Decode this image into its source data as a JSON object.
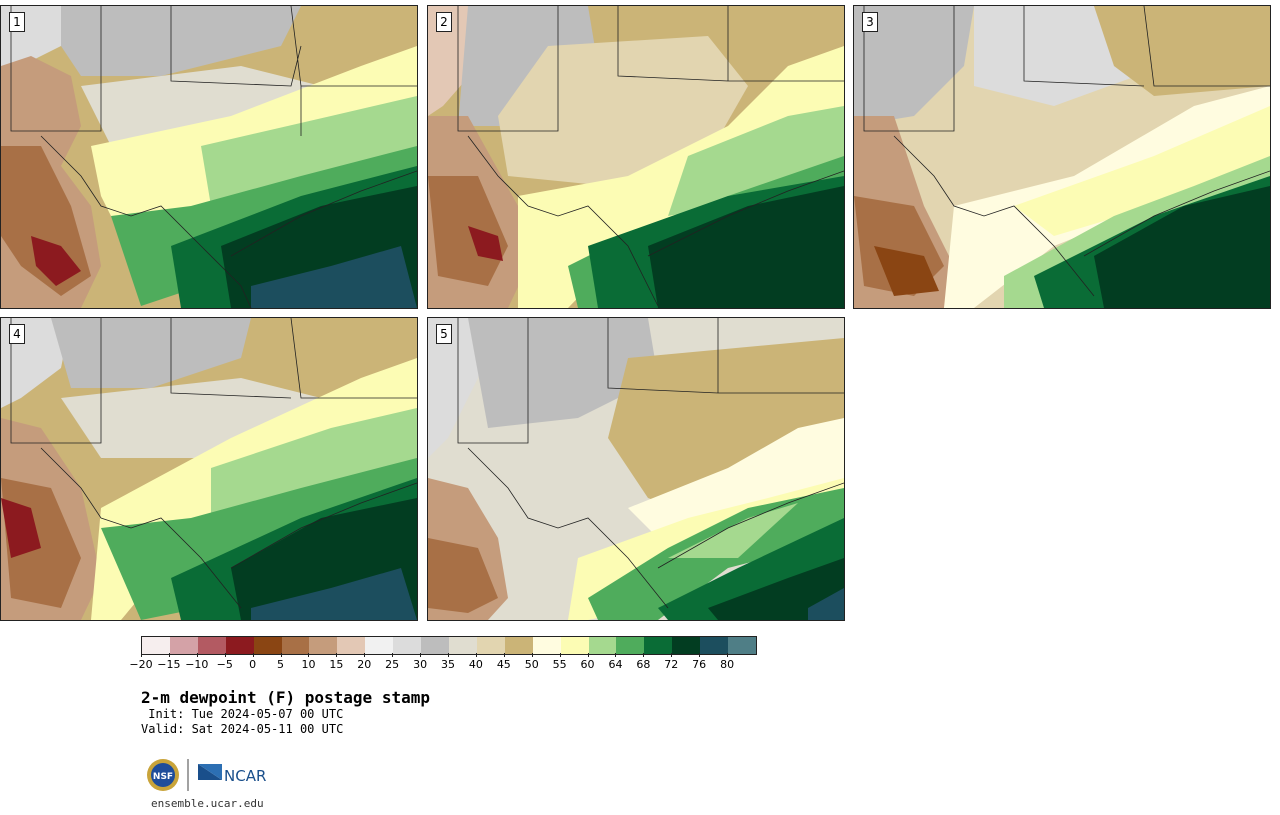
{
  "panels": [
    {
      "label": "1"
    },
    {
      "label": "2"
    },
    {
      "label": "3"
    },
    {
      "label": "4"
    },
    {
      "label": "5"
    }
  ],
  "colorbar": {
    "colors": [
      "#f6eeee",
      "#d4a2a7",
      "#b35a62",
      "#8c1a1f",
      "#8a4513",
      "#a87046",
      "#c59c7c",
      "#e3c8b5",
      "#f1f1f1",
      "#dcdcdc",
      "#bdbdbd",
      "#e0ddd0",
      "#e2d5b0",
      "#cbb477",
      "#fffce0",
      "#fcfcb4",
      "#a5d98f",
      "#4fac5c",
      "#0a6c36",
      "#023d21",
      "#1c4e5e",
      "#4f7e86"
    ],
    "tick_labels": [
      "−20",
      "−15",
      "−10",
      "−5",
      "0",
      "5",
      "10",
      "15",
      "20",
      "25",
      "30",
      "35",
      "40",
      "45",
      "50",
      "55",
      "60",
      "64",
      "68",
      "72",
      "76",
      "80"
    ]
  },
  "title": "2-m dewpoint (F) postage stamp",
  "init": " Init: Tue 2024-05-07 00 UTC",
  "valid": "Valid: Sat 2024-05-11 00 UTC",
  "logo_text": {
    "nsf": "NSF",
    "ncar": "NCAR"
  },
  "url": "ensemble.ucar.edu"
}
